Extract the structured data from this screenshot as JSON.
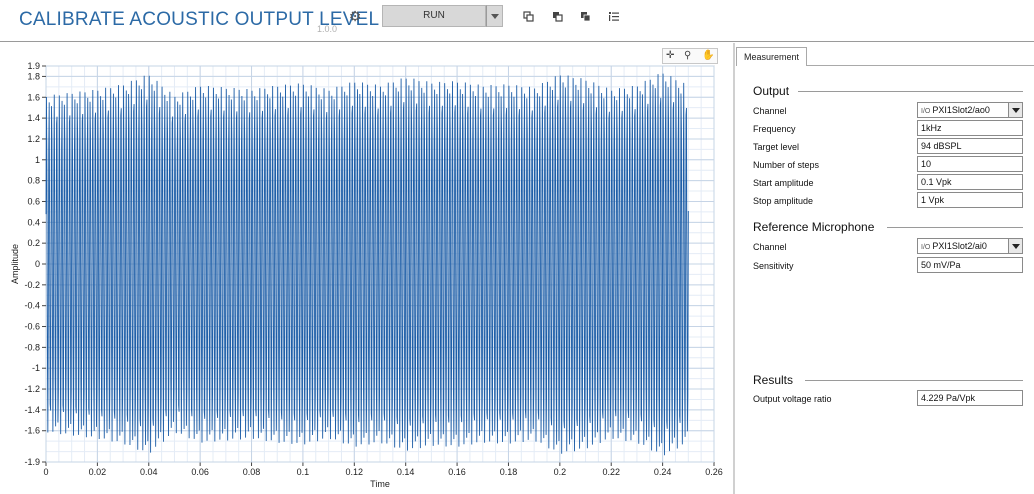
{
  "header": {
    "title": "CALIBRATE ACOUSTIC OUTPUT LEVEL",
    "version": "1.0.0",
    "run_label": "RUN",
    "icons": [
      "gear-icon",
      "copy-icon",
      "paste-icon",
      "duplicate-icon",
      "list-icon"
    ]
  },
  "graph": {
    "tools": [
      "cursor-add-icon",
      "zoom-icon",
      "pan-icon"
    ],
    "chart_data": {
      "type": "line",
      "title": "",
      "xlabel": "Time",
      "ylabel": "Amplitude",
      "xlim": [
        0,
        0.26
      ],
      "ylim": [
        -1.9,
        1.9
      ],
      "x_ticks": [
        "0",
        "0.02",
        "0.04",
        "0.06",
        "0.08",
        "0.1",
        "0.12",
        "0.14",
        "0.16",
        "0.18",
        "0.2",
        "0.22",
        "0.24",
        "0.26"
      ],
      "y_ticks": [
        "1.9",
        "1.8",
        "1.6",
        "1.4",
        "1.2",
        "1",
        "0.8",
        "0.6",
        "0.4",
        "0.2",
        "0",
        "-0.2",
        "-0.4",
        "-0.6",
        "-0.8",
        "-1",
        "-1.2",
        "-1.4",
        "-1.6",
        "-1.9"
      ],
      "grid": true,
      "series": [
        {
          "color": "#1f5fa8",
          "x_range": [
            0,
            0.25
          ],
          "carrier_frequency_hz": 1000,
          "peak_envelope": [
            [
              0.0,
              1.62
            ],
            [
              0.01,
              1.65
            ],
            [
              0.02,
              1.68
            ],
            [
              0.03,
              1.73
            ],
            [
              0.04,
              1.83
            ],
            [
              0.05,
              1.62
            ],
            [
              0.06,
              1.72
            ],
            [
              0.07,
              1.7
            ],
            [
              0.08,
              1.68
            ],
            [
              0.09,
              1.72
            ],
            [
              0.1,
              1.74
            ],
            [
              0.11,
              1.68
            ],
            [
              0.12,
              1.76
            ],
            [
              0.13,
              1.72
            ],
            [
              0.14,
              1.8
            ],
            [
              0.15,
              1.75
            ],
            [
              0.16,
              1.76
            ],
            [
              0.17,
              1.72
            ],
            [
              0.18,
              1.73
            ],
            [
              0.19,
              1.7
            ],
            [
              0.2,
              1.83
            ],
            [
              0.21,
              1.78
            ],
            [
              0.22,
              1.68
            ],
            [
              0.23,
              1.72
            ],
            [
              0.24,
              1.85
            ],
            [
              0.25,
              1.72
            ]
          ]
        }
      ]
    }
  },
  "settings": {
    "tab_label": "Measurement",
    "output": {
      "title": "Output",
      "fields": [
        {
          "label": "Channel",
          "value": "PXI1Slot2/ao0",
          "type": "channel"
        },
        {
          "label": "Frequency",
          "value": "1kHz",
          "type": "text"
        },
        {
          "label": "Target level",
          "value": "94 dBSPL",
          "type": "text"
        },
        {
          "label": "Number of steps",
          "value": "10",
          "type": "text"
        },
        {
          "label": "Start amplitude",
          "value": "0.1 Vpk",
          "type": "text"
        },
        {
          "label": "Stop amplitude",
          "value": "1 Vpk",
          "type": "text"
        }
      ]
    },
    "reference": {
      "title": "Reference Microphone",
      "fields": [
        {
          "label": "Channel",
          "value": "PXI1Slot2/ai0",
          "type": "channel"
        },
        {
          "label": "Sensitivity",
          "value": "50 mV/Pa",
          "type": "text"
        }
      ]
    },
    "results": {
      "title": "Results",
      "fields": [
        {
          "label": "Output voltage ratio",
          "value": "4.229 Pa/Vpk",
          "type": "text"
        }
      ]
    }
  }
}
